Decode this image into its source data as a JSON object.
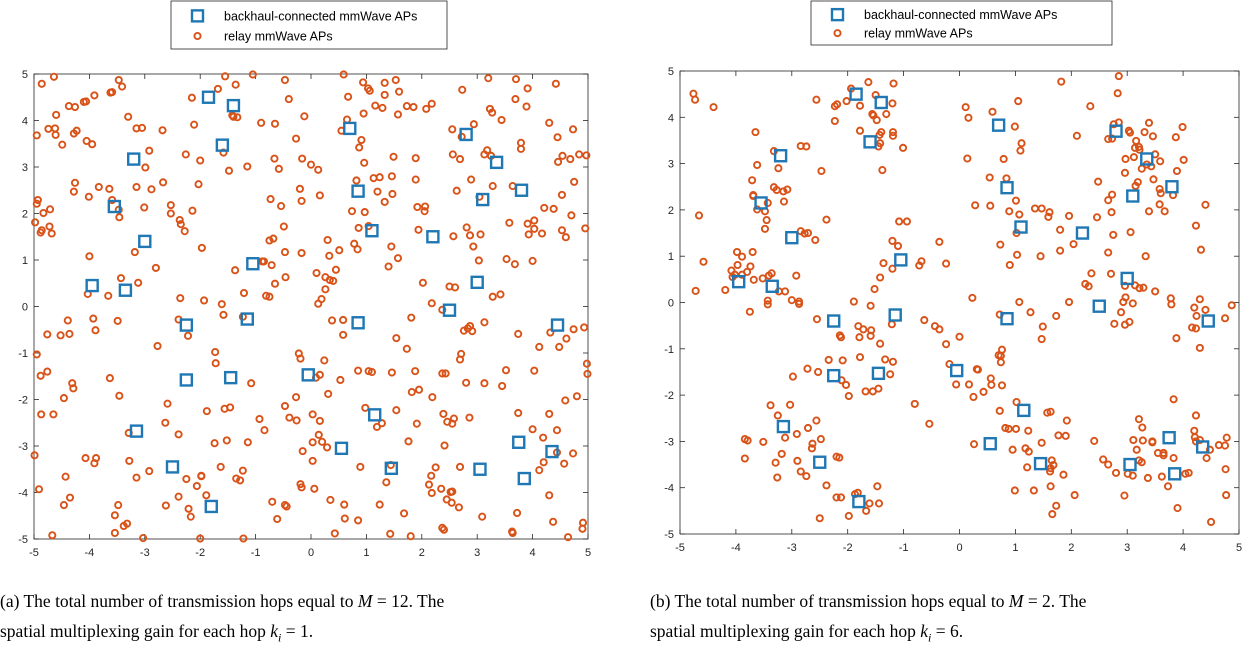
{
  "chart_data": [
    {
      "type": "scatter",
      "title": "",
      "xlabel": "",
      "ylabel": "",
      "xlim": [
        -5,
        5
      ],
      "ylim": [
        -5,
        5
      ],
      "xticks": [
        "-5",
        "-4",
        "-3",
        "-2",
        "-1",
        "0",
        "1",
        "2",
        "3",
        "4",
        "5"
      ],
      "yticks": [
        "5",
        "4",
        "3",
        "2",
        "1",
        "0",
        "-1",
        "-2",
        "-3",
        "-4",
        "-5"
      ],
      "grid": false,
      "legend_position": "top (above plot)",
      "legend": [
        "backhaul-connected mmWave APs",
        "relay mmWave APs"
      ],
      "marker_colors": {
        "backhaul": "#1f77b4",
        "relay": "#d95319"
      },
      "series": [
        {
          "name": "backhaul-connected mmWave APs",
          "marker": "square",
          "x": [
            -1.85,
            -1.4,
            -1.6,
            0.7,
            2.8,
            3.35,
            3.8,
            3.1,
            0.85,
            -3.2,
            -3.55,
            -3.0,
            1.1,
            2.2,
            3.0,
            -1.05,
            -3.95,
            -3.35,
            2.5,
            -2.25,
            -1.15,
            0.85,
            4.45,
            -2.25,
            -1.45,
            -0.05,
            1.15,
            -3.15,
            0.55,
            -2.5,
            1.45,
            3.05,
            3.75,
            3.85,
            4.35,
            -1.8
          ],
          "y": [
            4.5,
            4.32,
            3.47,
            3.83,
            3.7,
            3.1,
            2.5,
            2.3,
            2.48,
            3.17,
            2.15,
            1.4,
            1.63,
            1.5,
            0.52,
            0.92,
            0.45,
            0.35,
            -0.08,
            -0.4,
            -0.27,
            -0.35,
            -0.4,
            -1.58,
            -1.53,
            -1.47,
            -2.33,
            -2.68,
            -3.05,
            -3.45,
            -3.48,
            -3.5,
            -2.92,
            -3.7,
            -3.12,
            -4.3
          ]
        },
        {
          "name": "relay mmWave APs",
          "marker": "circle",
          "x": [],
          "y": []
        }
      ]
    },
    {
      "type": "scatter",
      "title": "",
      "xlabel": "",
      "ylabel": "",
      "xlim": [
        -5,
        5
      ],
      "ylim": [
        -5,
        5
      ],
      "xticks": [
        "-5",
        "-4",
        "-3",
        "-2",
        "-1",
        "0",
        "1",
        "2",
        "3",
        "4",
        "5"
      ],
      "yticks": [
        "5",
        "4",
        "3",
        "2",
        "1",
        "0",
        "-1",
        "-2",
        "-3",
        "-4",
        "-5"
      ],
      "grid": false,
      "legend_position": "top (above plot)",
      "legend": [
        "backhaul-connected mmWave APs",
        "relay mmWave APs"
      ],
      "marker_colors": {
        "backhaul": "#1f77b4",
        "relay": "#d95319"
      },
      "series": [
        {
          "name": "backhaul-connected mmWave APs",
          "marker": "square",
          "x": [
            -1.85,
            -1.4,
            -1.6,
            0.7,
            2.8,
            3.35,
            3.8,
            3.1,
            0.85,
            -3.2,
            -3.55,
            -3.0,
            1.1,
            2.2,
            3.0,
            -1.05,
            -3.95,
            -3.35,
            2.5,
            -2.25,
            -1.15,
            0.85,
            4.45,
            -2.25,
            -1.45,
            -0.05,
            1.15,
            -3.15,
            0.55,
            -2.5,
            1.45,
            3.05,
            3.75,
            3.85,
            4.35,
            -1.8
          ],
          "y": [
            4.5,
            4.32,
            3.47,
            3.83,
            3.7,
            3.1,
            2.5,
            2.3,
            2.48,
            3.17,
            2.15,
            1.4,
            1.63,
            1.5,
            0.52,
            0.92,
            0.45,
            0.35,
            -0.08,
            -0.4,
            -0.27,
            -0.35,
            -0.4,
            -1.58,
            -1.53,
            -1.47,
            -2.33,
            -2.68,
            -3.05,
            -3.45,
            -3.48,
            -3.5,
            -2.92,
            -3.7,
            -3.12,
            -4.3
          ]
        },
        {
          "name": "relay mmWave APs",
          "marker": "circle",
          "x": [],
          "y": []
        }
      ]
    }
  ],
  "captions": {
    "a": {
      "line1_prefix": "(a) The total number of transmission hops equal to ",
      "line1_var": "M",
      "line1_suffix": " = 12. The",
      "line2_prefix": "spatial multiplexing gain for each hop ",
      "line2_var": "k",
      "line2_sub": "i",
      "line2_suffix": " = 1."
    },
    "b": {
      "line1_prefix": "(b) The total number of transmission hops equal to ",
      "line1_var": "M",
      "line1_suffix": " = 2. The",
      "line2_prefix": "spatial multiplexing gain for each hop ",
      "line2_var": "k",
      "line2_sub": "i",
      "line2_suffix": " = 6."
    }
  }
}
